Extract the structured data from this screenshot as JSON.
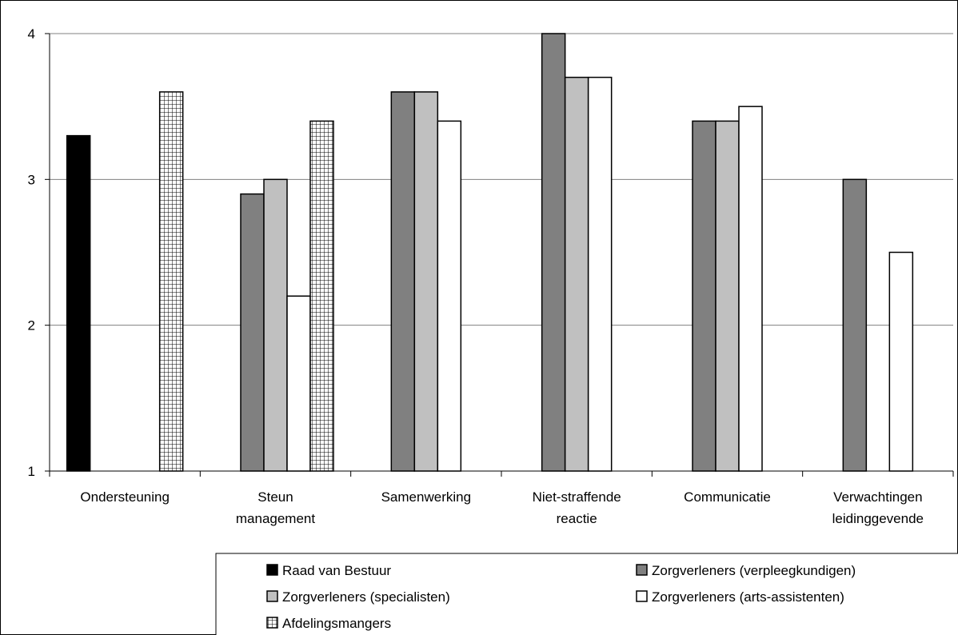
{
  "chart_data": {
    "type": "bar",
    "title": "",
    "xlabel": "",
    "ylabel": "",
    "ylim": [
      1,
      4
    ],
    "yticks": [
      "1",
      "2",
      "3",
      "4"
    ],
    "grid": true,
    "legend_position": "bottom",
    "categories": [
      [
        "Ondersteuning"
      ],
      [
        "Steun",
        "management"
      ],
      [
        "Samenwerking"
      ],
      [
        "Niet-straffende",
        "reactie"
      ],
      [
        "Communicatie"
      ],
      [
        "Verwachtingen",
        "leidinggevende"
      ]
    ],
    "series": [
      {
        "name": "Raad van Bestuur",
        "color": "#000000",
        "pattern": "solid",
        "values": [
          3.3,
          null,
          null,
          null,
          null,
          null
        ]
      },
      {
        "name": "Zorgverleners (verpleegkundigen)",
        "color": "#808080",
        "pattern": "solid",
        "values": [
          null,
          2.9,
          3.6,
          4.0,
          3.4,
          3.0
        ]
      },
      {
        "name": "Zorgverleners (specialisten)",
        "color": "#c0c0c0",
        "pattern": "solid",
        "values": [
          null,
          3.0,
          3.6,
          3.7,
          3.4,
          null
        ]
      },
      {
        "name": "Zorgverleners (arts-assistenten)",
        "color": "#ffffff",
        "pattern": "solid",
        "values": [
          null,
          2.2,
          3.4,
          3.7,
          3.5,
          2.5
        ]
      },
      {
        "name": "Afdelingsmangers",
        "color": "#ffffff",
        "pattern": "grid",
        "values": [
          3.6,
          3.4,
          null,
          null,
          null,
          null
        ]
      }
    ]
  }
}
